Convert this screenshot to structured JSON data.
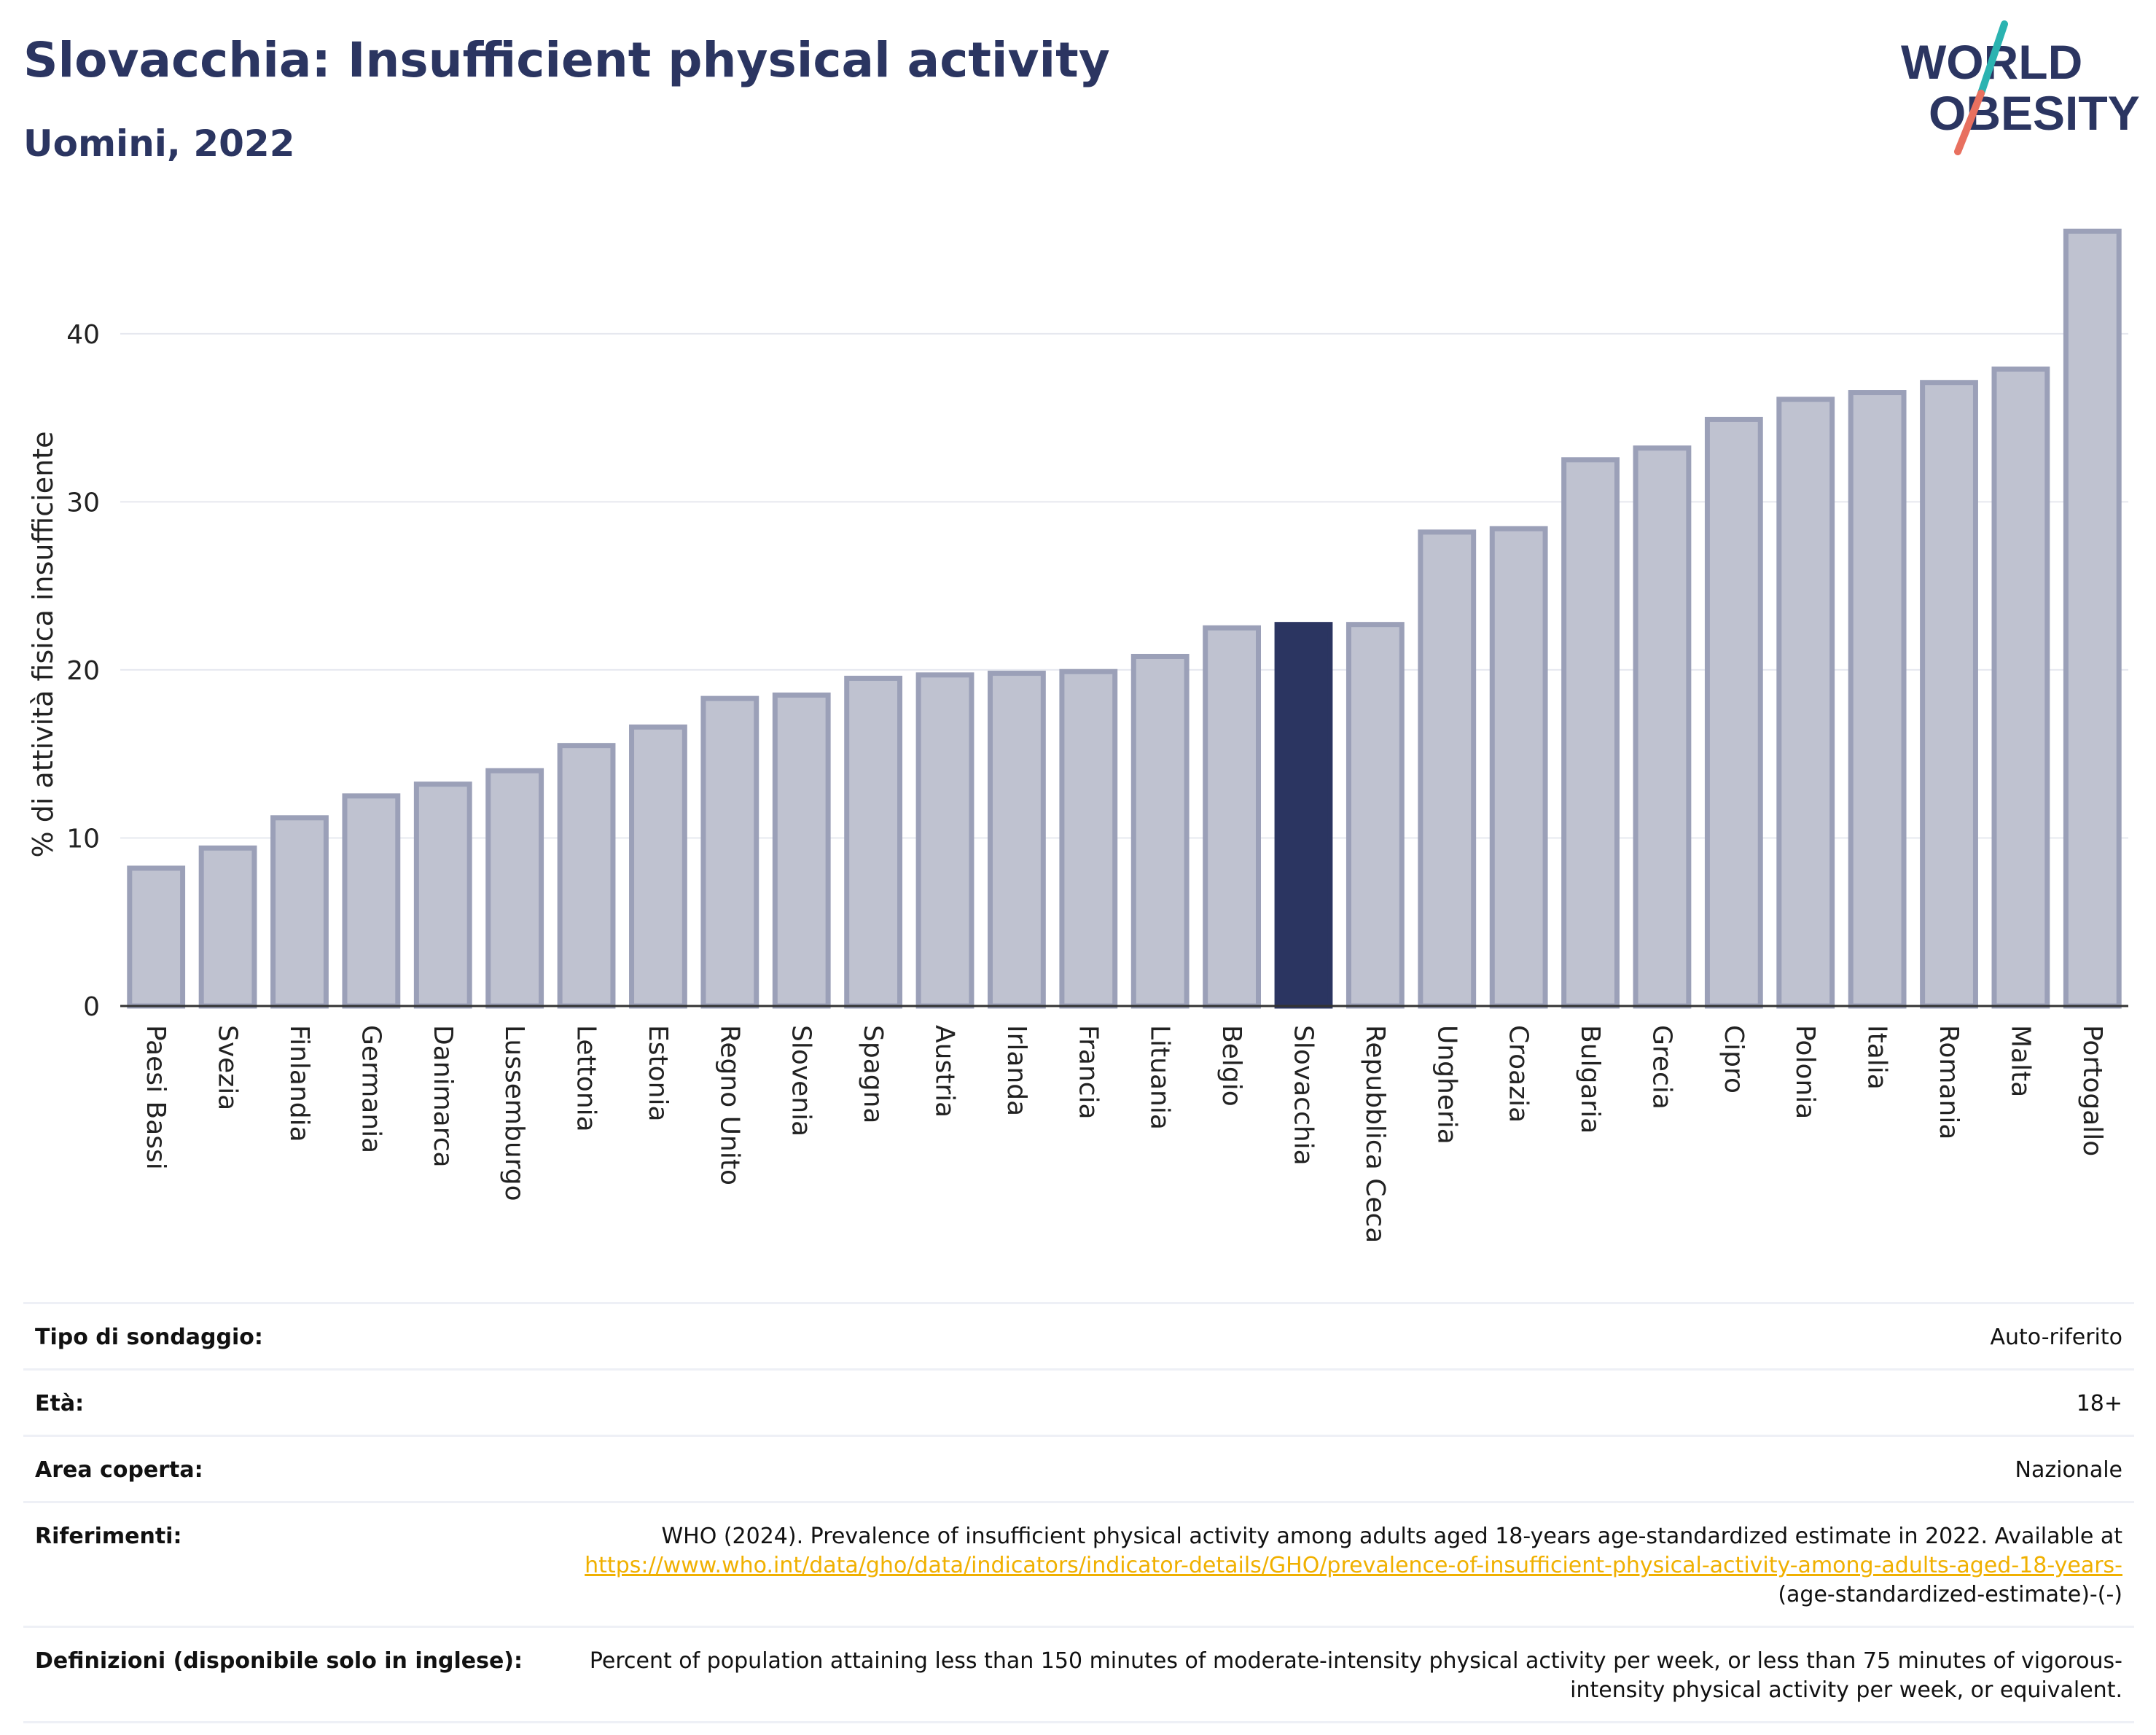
{
  "header": {
    "title": "Slovacchia: Insufficient physical activity",
    "subtitle": "Uomini, 2022"
  },
  "logo": {
    "line1": "WORLD",
    "line2": "OBESITY",
    "icon": "world-obesity-logo"
  },
  "colors": {
    "title": "#2b3561",
    "bar": "#bfc2d0",
    "bar_stroke": "#9ba0b8",
    "highlight": "#2b3561",
    "link": "#f0b000"
  },
  "chart_data": {
    "type": "bar",
    "title": "Slovacchia: Insufficient physical activity",
    "subtitle": "Uomini, 2022",
    "xlabel": "",
    "ylabel": "% di attività fisica insufficiente",
    "ylim": [
      0,
      46.5
    ],
    "yticks": [
      0,
      10,
      20,
      30,
      40
    ],
    "grid": true,
    "highlight": "Slovacchia",
    "categories": [
      "Paesi Bassi",
      "Svezia",
      "Finlandia",
      "Germania",
      "Danimarca",
      "Lussemburgo",
      "Lettonia",
      "Estonia",
      "Regno Unito",
      "Slovenia",
      "Spagna",
      "Austria",
      "Irlanda",
      "Francia",
      "Lituania",
      "Belgio",
      "Slovacchia",
      "Repubblica Ceca",
      "Ungheria",
      "Croazia",
      "Bulgaria",
      "Grecia",
      "Cipro",
      "Polonia",
      "Italia",
      "Romania",
      "Malta",
      "Portogallo"
    ],
    "values": [
      8.2,
      9.4,
      11.2,
      12.5,
      13.2,
      14.0,
      15.5,
      16.6,
      18.3,
      18.5,
      19.5,
      19.7,
      19.8,
      19.9,
      20.8,
      22.5,
      22.7,
      22.7,
      28.2,
      28.4,
      32.5,
      33.2,
      34.9,
      36.1,
      36.5,
      37.1,
      37.9,
      46.1
    ]
  },
  "meta": {
    "survey_label": "Tipo di sondaggio:",
    "survey_value": "Auto-riferito",
    "age_label": "Età:",
    "age_value": "18+",
    "area_label": "Area coperta:",
    "area_value": "Nazionale",
    "refs_label": "Riferimenti:",
    "refs_text": "WHO (2024). Prevalence of insufficient physical activity among adults aged 18-years age-standardized estimate in 2022. Available at",
    "refs_link": "https://www.who.int/data/gho/data/indicators/indicator-details/GHO/prevalence-of-insufficient-physical-activity-among-adults-aged-18-years-",
    "refs_suffix": "(age-standardized-estimate)-(-)",
    "defs_label": "Definizioni (disponibile solo in inglese):",
    "defs_value": "Percent of population attaining less than 150 minutes of moderate-intensity physical activity per week, or less than 75 minutes of vigorous-intensity physical activity per week, or equivalent."
  }
}
